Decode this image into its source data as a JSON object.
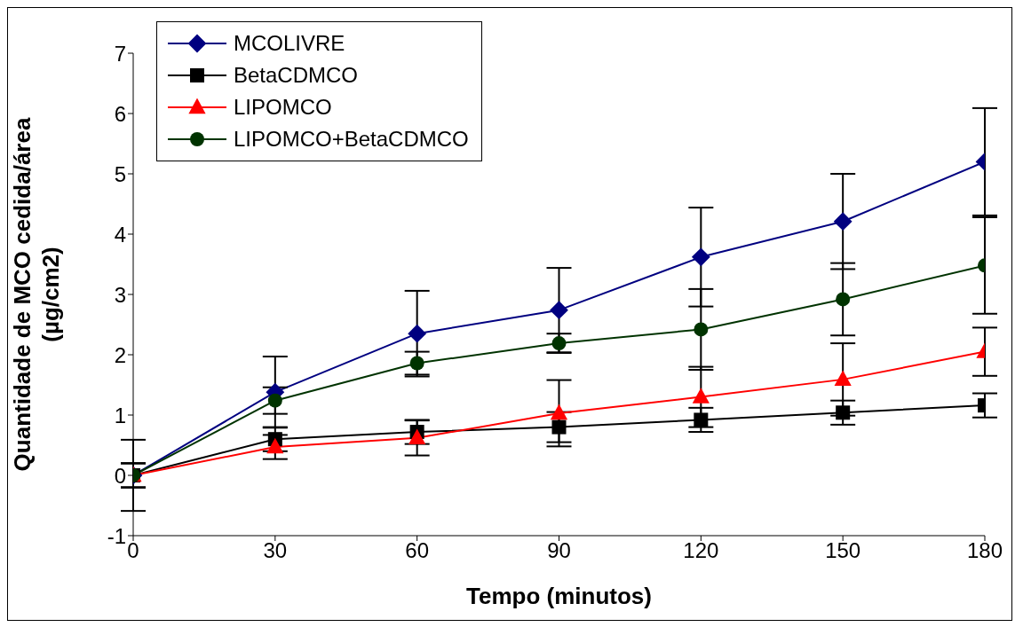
{
  "chart_data": {
    "type": "line",
    "xlabel": "Tempo (minutos)",
    "ylabel": "Quantidade de MCO cedida/área\n(µg/cm2)",
    "x": [
      0,
      30,
      60,
      90,
      120,
      150,
      180
    ],
    "xlim": [
      0,
      180
    ],
    "xticks": [
      0,
      30,
      60,
      90,
      120,
      150,
      180
    ],
    "ylim": [
      -1,
      7
    ],
    "yticks": [
      -1,
      0,
      1,
      2,
      3,
      4,
      5,
      6,
      7
    ],
    "grid": false,
    "legend": "top left",
    "series": [
      {
        "name": "MCOLIVRE",
        "color": "#000080",
        "marker": "diamond",
        "values": [
          0,
          1.38,
          2.35,
          2.74,
          3.62,
          4.21,
          5.2
        ],
        "errors": [
          0.59,
          0.59,
          0.71,
          0.7,
          0.82,
          0.79,
          0.89
        ]
      },
      {
        "name": "BetaCDMCO",
        "color": "#000000",
        "marker": "square",
        "values": [
          0,
          0.6,
          0.72,
          0.8,
          0.92,
          1.04,
          1.16
        ],
        "errors": [
          0.2,
          0.2,
          0.2,
          0.25,
          0.2,
          0.2,
          0.2
        ]
      },
      {
        "name": "LIPOMCO",
        "color": "#ff0000",
        "marker": "triangle",
        "values": [
          0,
          0.47,
          0.62,
          1.03,
          1.3,
          1.59,
          2.05
        ],
        "errors": [
          0.2,
          0.2,
          0.29,
          0.55,
          0.5,
          0.6,
          0.4
        ]
      },
      {
        "name": "LIPOMCO+BetaCDMCO",
        "color": "#003300",
        "marker": "circle",
        "values": [
          0,
          1.24,
          1.86,
          2.19,
          2.42,
          2.92,
          3.48
        ],
        "errors": [
          0.2,
          0.22,
          0.19,
          0.16,
          0.67,
          0.6,
          0.8
        ]
      }
    ]
  }
}
